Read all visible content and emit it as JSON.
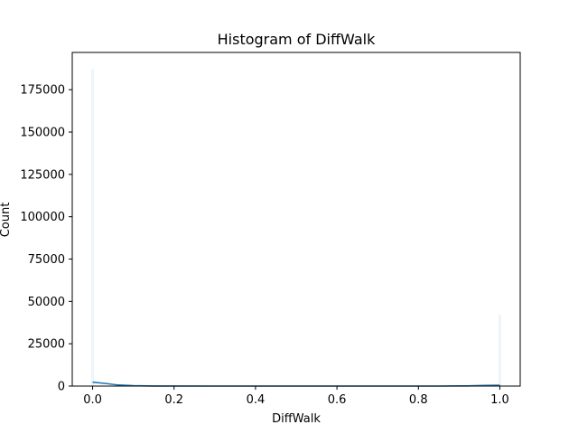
{
  "chart_data": {
    "type": "bar",
    "title": "Histogram of DiffWalk",
    "xlabel": "DiffWalk",
    "ylabel": "Count",
    "xlim": [
      -0.05,
      1.05
    ],
    "ylim": [
      0,
      197000
    ],
    "x_ticks": [
      0.0,
      0.2,
      0.4,
      0.6,
      0.8,
      1.0
    ],
    "x_tick_labels": [
      "0.0",
      "0.2",
      "0.4",
      "0.6",
      "0.8",
      "1.0"
    ],
    "y_ticks": [
      0,
      25000,
      50000,
      75000,
      100000,
      125000,
      150000,
      175000
    ],
    "y_tick_labels": [
      "0",
      "25000",
      "50000",
      "75000",
      "100000",
      "125000",
      "150000",
      "175000"
    ],
    "bins": [
      {
        "x": 0.0,
        "count": 186800
      },
      {
        "x": 1.0,
        "count": 42000
      }
    ],
    "kde": [
      {
        "x": 0.0,
        "y": 2300
      },
      {
        "x": 0.03,
        "y": 1600
      },
      {
        "x": 0.06,
        "y": 700
      },
      {
        "x": 0.1,
        "y": 200
      },
      {
        "x": 0.15,
        "y": 50
      },
      {
        "x": 0.3,
        "y": 0
      },
      {
        "x": 0.7,
        "y": 0
      },
      {
        "x": 0.85,
        "y": 20
      },
      {
        "x": 0.92,
        "y": 120
      },
      {
        "x": 0.96,
        "y": 380
      },
      {
        "x": 1.0,
        "y": 550
      }
    ],
    "colors": {
      "bar": "#1f77b4",
      "kde": "#1f77b4"
    },
    "grid": false,
    "legend": "none"
  }
}
